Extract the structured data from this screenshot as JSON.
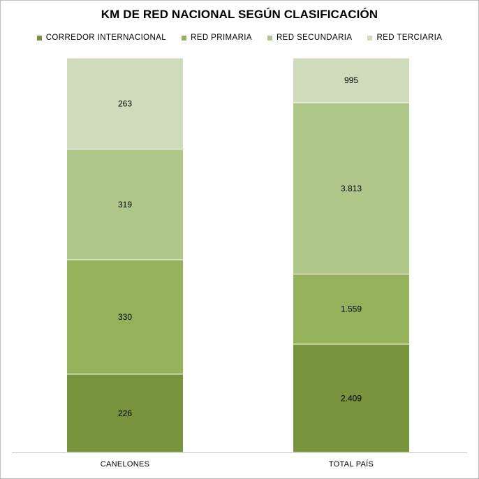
{
  "chart_data": {
    "type": "bar",
    "stacked": true,
    "title": "KM DE RED NACIONAL SEGÚN CLASIFICACIÓN",
    "categories": [
      "CANELONES",
      "TOTAL PAÍS"
    ],
    "series": [
      {
        "name": "CORREDOR INTERNACIONAL",
        "color": "#77933c",
        "values": [
          226,
          2409
        ],
        "labels": [
          "226",
          "2.409"
        ]
      },
      {
        "name": "RED PRIMARIA",
        "color": "#93b25a",
        "values": [
          330,
          1559
        ],
        "labels": [
          "330",
          "1.559"
        ]
      },
      {
        "name": "RED SECUNDARIA",
        "color": "#afc88a",
        "values": [
          319,
          3813
        ],
        "labels": [
          "319",
          "3.813"
        ]
      },
      {
        "name": "RED TERCIARIA",
        "color": "#cfdcbb",
        "values": [
          263,
          995
        ],
        "labels": [
          "263",
          "995"
        ]
      }
    ],
    "normalized": true,
    "ylim": [
      0,
      100
    ],
    "grid": false,
    "legend_position": "top"
  }
}
